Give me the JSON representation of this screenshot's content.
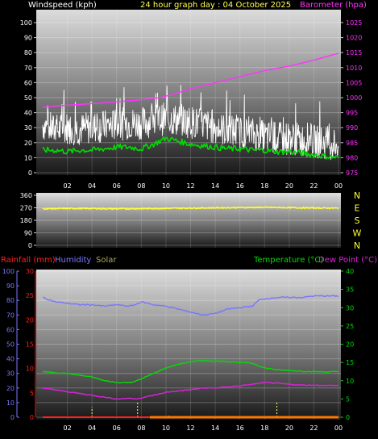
{
  "header": {
    "left_label": "Windspeed (kph)",
    "center_label": "24 hour graph day : 04 October 2025",
    "right_label": "Barometer (hpa)"
  },
  "colors": {
    "background": "#000000",
    "windspeed": "#ffffff",
    "wind_avg": "#00dd00",
    "barometer": "#ff33ff",
    "direction": "#ffff33",
    "rainfall": "#ff2020",
    "humidity": "#7777ff",
    "solar": "#aaaa55",
    "temperature": "#00dd00",
    "dewpoint": "#dd22dd",
    "rain_bar": "#ff7700",
    "solar_bar": "#ffff66"
  },
  "chart_data": [
    {
      "type": "line",
      "x_ticks": [
        "02",
        "04",
        "06",
        "08",
        "10",
        "12",
        "14",
        "16",
        "18",
        "20",
        "22",
        "00"
      ],
      "left_axis": {
        "label": "Windspeed (kph)",
        "ticks": [
          0,
          10,
          20,
          30,
          40,
          50,
          60,
          70,
          80,
          90,
          100
        ],
        "ylim": [
          0,
          100
        ]
      },
      "right_axis": {
        "label": "Barometer (hpa)",
        "ticks": [
          975,
          980,
          985,
          990,
          995,
          1000,
          1005,
          1010,
          1015,
          1020,
          1025
        ],
        "ylim": [
          975,
          1025
        ]
      },
      "grid": true,
      "series": [
        {
          "axis": "left",
          "x": [
            0,
            1,
            2,
            3,
            4,
            5,
            6,
            7,
            8,
            9,
            10,
            11,
            12,
            13,
            14,
            15,
            16,
            17,
            18,
            19,
            20,
            21,
            22,
            23,
            24
          ],
          "values": [
            32,
            28,
            30,
            29,
            30,
            31,
            32,
            33,
            33,
            35,
            36,
            35,
            34,
            32,
            30,
            28,
            27,
            26,
            24,
            23,
            23,
            22,
            21,
            20,
            19
          ]
        },
        {
          "axis": "left",
          "x": [
            0,
            1,
            2,
            3,
            4,
            5,
            6,
            7,
            8,
            9,
            10,
            11,
            12,
            13,
            14,
            15,
            16,
            17,
            18,
            19,
            20,
            21,
            22,
            23,
            24
          ],
          "values": [
            15,
            15,
            14,
            15,
            15,
            16,
            17,
            17,
            16,
            19,
            23,
            21,
            19,
            18,
            17,
            16,
            16,
            15,
            15,
            14,
            14,
            13,
            12,
            11,
            10
          ]
        },
        {
          "axis": "right",
          "x": [
            0,
            2,
            4,
            6,
            8,
            9.5,
            10.5,
            12,
            14,
            16,
            18,
            20,
            22,
            24
          ],
          "values": [
            996.8,
            997.5,
            998.0,
            998.6,
            999.3,
            1000.0,
            1001.0,
            1003.0,
            1005.0,
            1007.0,
            1009.0,
            1010.5,
            1012.5,
            1014.8
          ]
        }
      ]
    },
    {
      "type": "line",
      "x_ticks": [],
      "left_axis": {
        "ticks": [
          0,
          90,
          180,
          270,
          360
        ],
        "ylim": [
          0,
          360
        ]
      },
      "right_axis": {
        "ticks": [
          "N",
          "W",
          "S",
          "E",
          "N"
        ]
      },
      "grid": true,
      "series": [
        {
          "x": [
            0,
            2,
            4,
            6,
            8,
            10,
            12,
            14,
            16,
            18,
            20,
            22,
            24
          ],
          "values": [
            263,
            265,
            265,
            263,
            264,
            266,
            268,
            270,
            272,
            273,
            271,
            269,
            268
          ]
        }
      ]
    },
    {
      "type": "line",
      "x_ticks": [
        "02",
        "04",
        "06",
        "08",
        "10",
        "12",
        "14",
        "16",
        "18",
        "20",
        "22",
        "00"
      ],
      "legend": [
        "Rainfall (mm)",
        "Humidity",
        "Solar",
        "Temperature (°C)",
        "Dew Point (°C)"
      ],
      "left_axis_outer": {
        "label": "Humidity",
        "ticks": [
          0,
          10,
          20,
          30,
          40,
          50,
          60,
          70,
          80,
          90,
          100
        ],
        "ylim": [
          0,
          100
        ]
      },
      "left_axis_inner": {
        "label": "Rainfall (mm)",
        "ticks": [
          0,
          5,
          10,
          15,
          20,
          25,
          30
        ],
        "ylim": [
          0,
          30
        ]
      },
      "right_axis": {
        "label": "Temperature (°C)",
        "ticks": [
          0,
          5,
          10,
          15,
          20,
          25,
          30,
          35,
          40
        ],
        "ylim": [
          0,
          40
        ]
      },
      "grid": true,
      "series": [
        {
          "axis": "left_outer",
          "x": [
            0,
            1,
            2,
            3,
            4,
            5,
            6,
            7,
            7.5,
            8,
            9,
            10,
            11,
            12,
            13,
            14,
            15,
            16,
            17,
            17.5,
            18,
            19,
            20,
            21,
            22,
            23,
            24
          ],
          "values": [
            82,
            79,
            78,
            77,
            77,
            76,
            77,
            76,
            77,
            79,
            77,
            76,
            74,
            72,
            70,
            71,
            74,
            75,
            76,
            80,
            81,
            82,
            82,
            82,
            83,
            83,
            83
          ]
        },
        {
          "axis": "right",
          "x": [
            0,
            1,
            2,
            3,
            4,
            5,
            6,
            7,
            7.5,
            8,
            9,
            10,
            11,
            12,
            13,
            14,
            15,
            16,
            17,
            18,
            19,
            20,
            21,
            22,
            23,
            24
          ],
          "values": [
            12.5,
            12.2,
            12.0,
            11.5,
            11.0,
            10.0,
            9.5,
            9.5,
            9.8,
            10.5,
            12.0,
            13.5,
            14.5,
            15.2,
            15.5,
            15.4,
            15.3,
            15.0,
            14.8,
            13.5,
            13.0,
            12.8,
            12.6,
            12.5,
            12.4,
            12.5
          ]
        },
        {
          "axis": "right",
          "x": [
            0,
            1,
            2,
            3,
            4,
            5,
            6,
            7,
            7.5,
            8,
            9,
            10,
            11,
            12,
            13,
            14,
            15,
            16,
            17,
            18,
            19,
            20,
            21,
            22,
            23,
            24
          ],
          "values": [
            8.0,
            7.5,
            7.0,
            6.5,
            6.0,
            5.5,
            5.0,
            5.2,
            5.0,
            5.3,
            6.0,
            6.8,
            7.2,
            7.5,
            8.0,
            8.0,
            8.3,
            8.6,
            9.0,
            9.5,
            9.3,
            9.0,
            8.8,
            8.8,
            8.7,
            8.7
          ]
        },
        {
          "axis": "left_inner",
          "x": [
            0,
            8.7,
            24
          ],
          "values": [
            0,
            0,
            0
          ]
        }
      ],
      "solar_bars": [
        {
          "x": 4.0,
          "value": 7
        },
        {
          "x": 7.7,
          "value": 11
        },
        {
          "x": 10.2,
          "value": 2
        },
        {
          "x": 19.0,
          "value": 11
        }
      ]
    }
  ]
}
